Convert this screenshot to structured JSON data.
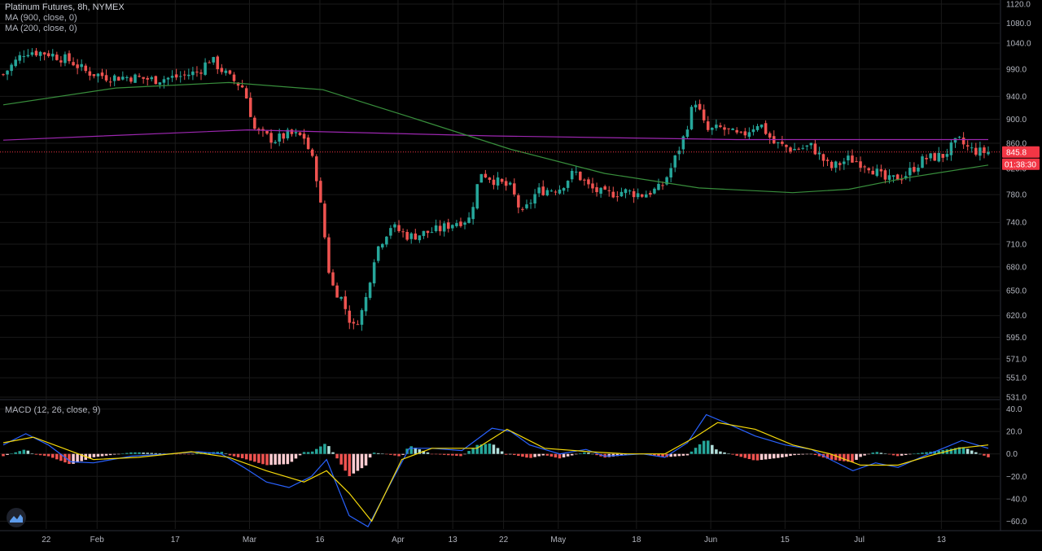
{
  "header": {
    "symbol_title": "Platinum Futures, 8h, NYMEX",
    "ma1_label": "MA (900, close, 0)",
    "ma2_label": "MA (200, close, 0)",
    "macd_label": "MACD (12, 26, close, 9)"
  },
  "price_badge": {
    "value": "845.8",
    "countdown": "01:38:30",
    "color": "#f23645"
  },
  "colors": {
    "up": "#26a69a",
    "down": "#ef5350",
    "ma900": "#9c27b0",
    "ma200": "#388e3c",
    "macd_line": "#2962ff",
    "signal_line": "#f5d90a",
    "grid": "#1a1a1a",
    "axis_text": "#b2b5be"
  },
  "icons": {
    "logo": "tradingview-logo-icon"
  },
  "chart_data": [
    {
      "type": "candlestick",
      "title": "Platinum Futures, 8h, NYMEX",
      "y_ticks": [
        "1120.0",
        "1080.0",
        "1040.0",
        "990.0",
        "940.0",
        "900.0",
        "860.0",
        "820.0",
        "780.0",
        "740.0",
        "710.0",
        "680.0",
        "650.0",
        "620.0",
        "595.0",
        "571.0",
        "551.0",
        "531.0"
      ],
      "x_ticks": [
        "22",
        "Feb",
        "17",
        "Mar",
        "16",
        "Apr",
        "13",
        "22",
        "May",
        "18",
        "Jun",
        "15",
        "Jul",
        "13"
      ],
      "scale": "log",
      "grid": true,
      "ylim": [
        531,
        1120
      ],
      "close_path": [
        {
          "x": 0,
          "y": 980
        },
        {
          "x": 6,
          "y": 1025
        },
        {
          "x": 12,
          "y": 1020
        },
        {
          "x": 18,
          "y": 1005
        },
        {
          "x": 22,
          "y": 985
        },
        {
          "x": 28,
          "y": 975
        },
        {
          "x": 34,
          "y": 975
        },
        {
          "x": 40,
          "y": 970
        },
        {
          "x": 46,
          "y": 975
        },
        {
          "x": 52,
          "y": 985
        },
        {
          "x": 55,
          "y": 1010
        },
        {
          "x": 60,
          "y": 975
        },
        {
          "x": 64,
          "y": 955
        },
        {
          "x": 67,
          "y": 880
        },
        {
          "x": 72,
          "y": 865
        },
        {
          "x": 76,
          "y": 875
        },
        {
          "x": 80,
          "y": 870
        },
        {
          "x": 83,
          "y": 820
        },
        {
          "x": 85,
          "y": 740
        },
        {
          "x": 87,
          "y": 660
        },
        {
          "x": 90,
          "y": 640
        },
        {
          "x": 93,
          "y": 605
        },
        {
          "x": 96,
          "y": 630
        },
        {
          "x": 99,
          "y": 700
        },
        {
          "x": 103,
          "y": 735
        },
        {
          "x": 108,
          "y": 720
        },
        {
          "x": 112,
          "y": 725
        },
        {
          "x": 116,
          "y": 730
        },
        {
          "x": 120,
          "y": 740
        },
        {
          "x": 124,
          "y": 745
        },
        {
          "x": 127,
          "y": 815
        },
        {
          "x": 131,
          "y": 800
        },
        {
          "x": 135,
          "y": 790
        },
        {
          "x": 138,
          "y": 750
        },
        {
          "x": 142,
          "y": 785
        },
        {
          "x": 148,
          "y": 790
        },
        {
          "x": 152,
          "y": 815
        },
        {
          "x": 156,
          "y": 790
        },
        {
          "x": 160,
          "y": 780
        },
        {
          "x": 165,
          "y": 785
        },
        {
          "x": 170,
          "y": 780
        },
        {
          "x": 175,
          "y": 790
        },
        {
          "x": 178,
          "y": 825
        },
        {
          "x": 181,
          "y": 870
        },
        {
          "x": 184,
          "y": 935
        },
        {
          "x": 187,
          "y": 880
        },
        {
          "x": 191,
          "y": 885
        },
        {
          "x": 196,
          "y": 870
        },
        {
          "x": 201,
          "y": 895
        },
        {
          "x": 205,
          "y": 860
        },
        {
          "x": 210,
          "y": 850
        },
        {
          "x": 215,
          "y": 855
        },
        {
          "x": 220,
          "y": 820
        },
        {
          "x": 225,
          "y": 835
        },
        {
          "x": 230,
          "y": 825
        },
        {
          "x": 235,
          "y": 800
        },
        {
          "x": 240,
          "y": 810
        },
        {
          "x": 245,
          "y": 835
        },
        {
          "x": 250,
          "y": 840
        },
        {
          "x": 254,
          "y": 865
        },
        {
          "x": 257,
          "y": 850
        },
        {
          "x": 260,
          "y": 845.8
        }
      ],
      "series": [
        {
          "name": "MA (900, close, 0)",
          "values": [
            {
              "x": 0,
              "y": 865
            },
            {
              "x": 65,
              "y": 882
            },
            {
              "x": 130,
              "y": 872
            },
            {
              "x": 195,
              "y": 866
            },
            {
              "x": 262,
              "y": 866
            }
          ]
        },
        {
          "name": "MA (200, close, 0)",
          "values": [
            {
              "x": 0,
              "y": 925
            },
            {
              "x": 30,
              "y": 955
            },
            {
              "x": 60,
              "y": 965
            },
            {
              "x": 85,
              "y": 952
            },
            {
              "x": 110,
              "y": 900
            },
            {
              "x": 135,
              "y": 850
            },
            {
              "x": 160,
              "y": 812
            },
            {
              "x": 185,
              "y": 790
            },
            {
              "x": 210,
              "y": 783
            },
            {
              "x": 225,
              "y": 788
            },
            {
              "x": 240,
              "y": 805
            },
            {
              "x": 262,
              "y": 825
            }
          ]
        }
      ]
    },
    {
      "type": "macd",
      "title": "MACD (12, 26, close, 9)",
      "y_ticks": [
        "40.0",
        "20.0",
        "0.0",
        "−20.0",
        "−40.0",
        "−60.0"
      ],
      "ylim": [
        -67,
        47
      ],
      "grid": true,
      "series": [
        {
          "name": "MACD",
          "values": [
            {
              "x": 0,
              "y": 8
            },
            {
              "x": 6,
              "y": 18
            },
            {
              "x": 12,
              "y": 8
            },
            {
              "x": 18,
              "y": -7
            },
            {
              "x": 24,
              "y": -8
            },
            {
              "x": 34,
              "y": -2
            },
            {
              "x": 44,
              "y": 0
            },
            {
              "x": 52,
              "y": 2
            },
            {
              "x": 58,
              "y": 0
            },
            {
              "x": 64,
              "y": -12
            },
            {
              "x": 70,
              "y": -25
            },
            {
              "x": 76,
              "y": -30
            },
            {
              "x": 82,
              "y": -20
            },
            {
              "x": 86,
              "y": -5
            },
            {
              "x": 92,
              "y": -55
            },
            {
              "x": 97,
              "y": -65
            },
            {
              "x": 104,
              "y": -20
            },
            {
              "x": 108,
              "y": 5
            },
            {
              "x": 114,
              "y": 5
            },
            {
              "x": 122,
              "y": 3
            },
            {
              "x": 130,
              "y": 23
            },
            {
              "x": 135,
              "y": 20
            },
            {
              "x": 140,
              "y": 8
            },
            {
              "x": 148,
              "y": 0
            },
            {
              "x": 155,
              "y": 4
            },
            {
              "x": 160,
              "y": -2
            },
            {
              "x": 170,
              "y": 0
            },
            {
              "x": 176,
              "y": -3
            },
            {
              "x": 182,
              "y": 10
            },
            {
              "x": 187,
              "y": 35
            },
            {
              "x": 192,
              "y": 28
            },
            {
              "x": 200,
              "y": 16
            },
            {
              "x": 208,
              "y": 8
            },
            {
              "x": 215,
              "y": 4
            },
            {
              "x": 220,
              "y": -5
            },
            {
              "x": 226,
              "y": -15
            },
            {
              "x": 232,
              "y": -8
            },
            {
              "x": 238,
              "y": -12
            },
            {
              "x": 244,
              "y": -3
            },
            {
              "x": 250,
              "y": 5
            },
            {
              "x": 255,
              "y": 12
            },
            {
              "x": 262,
              "y": 5
            }
          ]
        },
        {
          "name": "Signal",
          "values": [
            {
              "x": 0,
              "y": 10
            },
            {
              "x": 8,
              "y": 15
            },
            {
              "x": 16,
              "y": 5
            },
            {
              "x": 24,
              "y": -5
            },
            {
              "x": 36,
              "y": -3
            },
            {
              "x": 50,
              "y": 2
            },
            {
              "x": 60,
              "y": -3
            },
            {
              "x": 70,
              "y": -15
            },
            {
              "x": 80,
              "y": -25
            },
            {
              "x": 86,
              "y": -15
            },
            {
              "x": 92,
              "y": -35
            },
            {
              "x": 98,
              "y": -60
            },
            {
              "x": 106,
              "y": -5
            },
            {
              "x": 114,
              "y": 5
            },
            {
              "x": 126,
              "y": 5
            },
            {
              "x": 134,
              "y": 22
            },
            {
              "x": 144,
              "y": 5
            },
            {
              "x": 156,
              "y": 2
            },
            {
              "x": 166,
              "y": 0
            },
            {
              "x": 176,
              "y": 0
            },
            {
              "x": 184,
              "y": 15
            },
            {
              "x": 190,
              "y": 28
            },
            {
              "x": 200,
              "y": 22
            },
            {
              "x": 210,
              "y": 8
            },
            {
              "x": 220,
              "y": 0
            },
            {
              "x": 228,
              "y": -10
            },
            {
              "x": 238,
              "y": -10
            },
            {
              "x": 246,
              "y": -2
            },
            {
              "x": 254,
              "y": 5
            },
            {
              "x": 262,
              "y": 8
            }
          ]
        }
      ]
    }
  ]
}
